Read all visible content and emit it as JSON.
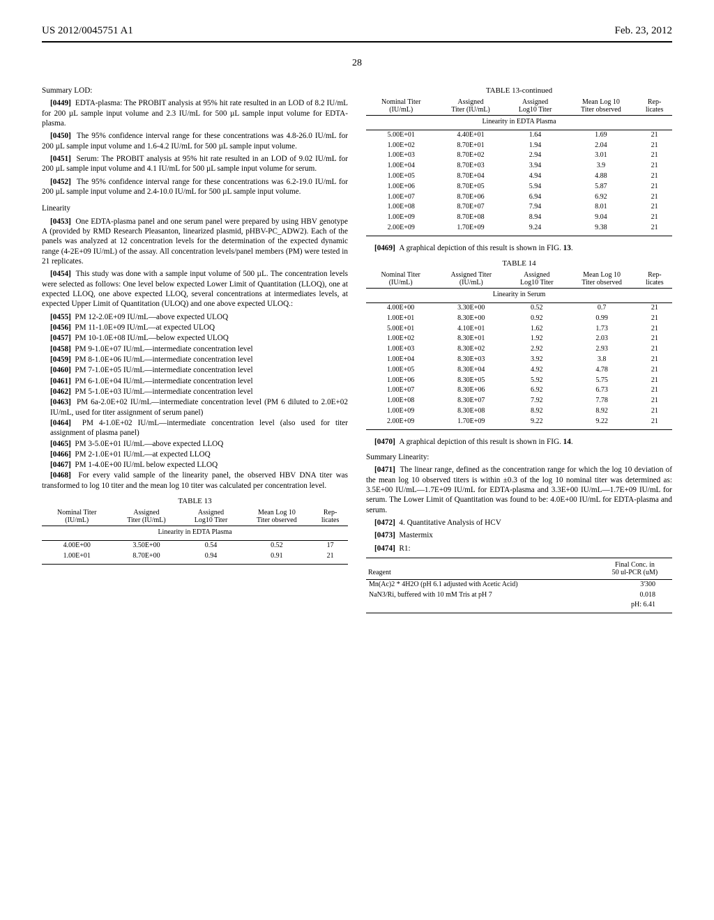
{
  "header": {
    "pub_no": "US 2012/0045751 A1",
    "date": "Feb. 23, 2012",
    "page_no": "28"
  },
  "left": {
    "lod_head": "Summary LOD:",
    "p0449": "EDTA-plasma: The PROBIT analysis at 95% hit rate resulted in an LOD of 8.2 IU/mL for 200 µL sample input volume and 2.3 IU/mL for 500 µL sample input volume for EDTA-plasma.",
    "p0450": "The 95% confidence interval range for these concentrations was 4.8-26.0 IU/mL for 200 µL sample input volume and 1.6-4.2 IU/mL for 500 µL sample input volume.",
    "p0451": "Serum: The PROBIT analysis at 95% hit rate resulted in an LOD of 9.02 IU/mL for 200 µL sample input volume and 4.1 IU/mL for 500 µL sample input volume for serum.",
    "p0452": "The 95% confidence interval range for these concentrations was 6.2-19.0 IU/mL for 200 µL sample input volume and 2.4-10.0 IU/mL for 500 µL sample input volume.",
    "linearity_head": "Linearity",
    "p0453": "One EDTA-plasma panel and one serum panel were prepared by using HBV genotype A (provided by RMD Research Pleasanton, linearized plasmid, pHBV-PC_ADW2). Each of the panels was analyzed at 12 concentration levels for the determination of the expected dynamic range (4-2E+09 IU/mL) of the assay. All concentration levels/panel members (PM) were tested in 21 replicates.",
    "p0454": "This study was done with a sample input volume of 500 µL. The concentration levels were selected as follows: One level below expected Lower Limit of Quantitation (LLOQ), one at expected LLOQ, one above expected LLOQ, several concentrations at intermediates levels, at expected Upper Limit of Quantitation (ULOQ) and one above expected ULOQ.:",
    "pm": [
      {
        "n": "[0455]",
        "t": "PM 12-2.0E+09 IU/mL—above expected ULOQ"
      },
      {
        "n": "[0456]",
        "t": "PM 11-1.0E+09 IU/mL—at expected ULOQ"
      },
      {
        "n": "[0457]",
        "t": "PM 10-1.0E+08 IU/mL—below expected ULOQ"
      },
      {
        "n": "[0458]",
        "t": "PM 9-1.0E+07 IU/mL—intermediate concentration level"
      },
      {
        "n": "[0459]",
        "t": "PM 8-1.0E+06 IU/mL—intermediate concentration level"
      },
      {
        "n": "[0460]",
        "t": "PM 7-1.0E+05 IU/mL—intermediate concentration level"
      },
      {
        "n": "[0461]",
        "t": "PM 6-1.0E+04 IU/mL—intermediate concentration level"
      },
      {
        "n": "[0462]",
        "t": "PM 5-1.0E+03 IU/mL—intermediate concentration level"
      },
      {
        "n": "[0463]",
        "t": "PM 6a-2.0E+02 IU/mL—intermediate concentration level (PM 6 diluted to 2.0E+02 IU/mL, used for titer assignment of serum panel)"
      },
      {
        "n": "[0464]",
        "t": "PM 4-1.0E+02 IU/mL—intermediate concentration level (also used for titer assignment of plasma panel)"
      },
      {
        "n": "[0465]",
        "t": "PM 3-5.0E+01 IU/mL—above expected LLOQ"
      },
      {
        "n": "[0466]",
        "t": "PM 2-1.0E+01 IU/mL—at expected LLOQ"
      },
      {
        "n": "[0467]",
        "t": "PM 1-4.0E+00 IU/mL below expected LLOQ"
      }
    ],
    "p0468": "For every valid sample of the linearity panel, the observed HBV DNA titer was transformed to log 10 titer and the mean log 10 titer was calculated per concentration level.",
    "table13_title": "TABLE 13",
    "table13_sub": "Linearity in EDTA Plasma",
    "t13_cols": {
      "c1a": "Nominal Titer",
      "c1b": "(IU/mL)",
      "c2a": "Assigned",
      "c2b": "Titer (IU/mL)",
      "c3a": "Assigned",
      "c3b": "Log10 Titer",
      "c4a": "Mean Log 10",
      "c4b": "Titer observed",
      "c5a": "Rep-",
      "c5b": "licates"
    },
    "t13_rows": [
      [
        "4.00E+00",
        "3.50E+00",
        "0.54",
        "0.52",
        "17"
      ],
      [
        "1.00E+01",
        "8.70E+00",
        "0.94",
        "0.91",
        "21"
      ]
    ]
  },
  "right": {
    "table13c_title": "TABLE 13-continued",
    "table13c_sub": "Linearity in EDTA Plasma",
    "t13c_rows": [
      [
        "5.00E+01",
        "4.40E+01",
        "1.64",
        "1.69",
        "21"
      ],
      [
        "1.00E+02",
        "8.70E+01",
        "1.94",
        "2.04",
        "21"
      ],
      [
        "1.00E+03",
        "8.70E+02",
        "2.94",
        "3.01",
        "21"
      ],
      [
        "1.00E+04",
        "8.70E+03",
        "3.94",
        "3.9",
        "21"
      ],
      [
        "1.00E+05",
        "8.70E+04",
        "4.94",
        "4.88",
        "21"
      ],
      [
        "1.00E+06",
        "8.70E+05",
        "5.94",
        "5.87",
        "21"
      ],
      [
        "1.00E+07",
        "8.70E+06",
        "6.94",
        "6.92",
        "21"
      ],
      [
        "1.00E+08",
        "8.70E+07",
        "7.94",
        "8.01",
        "21"
      ],
      [
        "1.00E+09",
        "8.70E+08",
        "8.94",
        "9.04",
        "21"
      ],
      [
        "2.00E+09",
        "1.70E+09",
        "9.24",
        "9.38",
        "21"
      ]
    ],
    "p0469a": "A graphical depiction of this result is shown in FIG. ",
    "p0469b": "13",
    "table14_title": "TABLE 14",
    "table14_sub": "Linearity in Serum",
    "t14_cols": {
      "c1a": "Nominal Titer",
      "c1b": "(IU/mL)",
      "c2a": "Assigned Titer",
      "c2b": "(IU/mL)",
      "c3a": "Assigned",
      "c3b": "Log10 Titer",
      "c4a": "Mean Log 10",
      "c4b": "Titer observed",
      "c5a": "Rep-",
      "c5b": "licates"
    },
    "t14_rows": [
      [
        "4.00E+00",
        "3.30E+00",
        "0.52",
        "0.7",
        "21"
      ],
      [
        "1.00E+01",
        "8.30E+00",
        "0.92",
        "0.99",
        "21"
      ],
      [
        "5.00E+01",
        "4.10E+01",
        "1.62",
        "1.73",
        "21"
      ],
      [
        "1.00E+02",
        "8.30E+01",
        "1.92",
        "2.03",
        "21"
      ],
      [
        "1.00E+03",
        "8.30E+02",
        "2.92",
        "2.93",
        "21"
      ],
      [
        "1.00E+04",
        "8.30E+03",
        "3.92",
        "3.8",
        "21"
      ],
      [
        "1.00E+05",
        "8.30E+04",
        "4.92",
        "4.78",
        "21"
      ],
      [
        "1.00E+06",
        "8.30E+05",
        "5.92",
        "5.75",
        "21"
      ],
      [
        "1.00E+07",
        "8.30E+06",
        "6.92",
        "6.73",
        "21"
      ],
      [
        "1.00E+08",
        "8.30E+07",
        "7.92",
        "7.78",
        "21"
      ],
      [
        "1.00E+09",
        "8.30E+08",
        "8.92",
        "8.92",
        "21"
      ],
      [
        "2.00E+09",
        "1.70E+09",
        "9.22",
        "9.22",
        "21"
      ]
    ],
    "p0470a": "A graphical depiction of this result is shown in FIG. ",
    "p0470b": "14",
    "sum_lin_head": "Summary Linearity:",
    "p0471": "The linear range, defined as the concentration range for which the log 10 deviation of the mean log 10 observed titers is within ±0.3 of the log 10 nominal titer was determined as: 3.5E+00 IU/mL—1.7E+09 IU/mL for EDTA-plasma and 3.3E+00 IU/mL—1.7E+09 IU/mL for serum. The Lower Limit of Quantitation was found to be: 4.0E+00 IU/mL for EDTA-plasma and serum.",
    "p0472": "4. Quantitative Analysis of HCV",
    "p0473": "Mastermix",
    "p0474": "R1:",
    "reagent_head": {
      "c1": "Reagent",
      "c2a": "Final Conc. in",
      "c2b": "50 ul-PCR (uM)"
    },
    "reagent_rows": [
      [
        "Mn(Ac)2 * 4H2O (pH 6.1 adjusted with Acetic Acid)",
        "3'300"
      ],
      [
        "NaN3/Ri, buffered with 10 mM Tris at pH 7",
        "0.018"
      ],
      [
        "",
        "pH: 6.41"
      ]
    ]
  }
}
